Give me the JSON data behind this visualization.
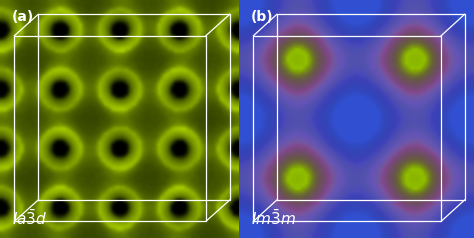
{
  "background_color": "#000000",
  "fig_width": 4.74,
  "fig_height": 2.38,
  "dpi": 100,
  "label_a": "(a)",
  "label_b": "(b)",
  "text_color": "#ffffff",
  "label_fontsize": 10,
  "formula_fontsize": 11,
  "gyroid_color_rgb": [
    180,
    220,
    0
  ],
  "purple_color_rgb": [
    160,
    60,
    220
  ],
  "blue_color_rgb": [
    50,
    80,
    210
  ],
  "yellow_color_rgb": [
    160,
    210,
    0
  ]
}
